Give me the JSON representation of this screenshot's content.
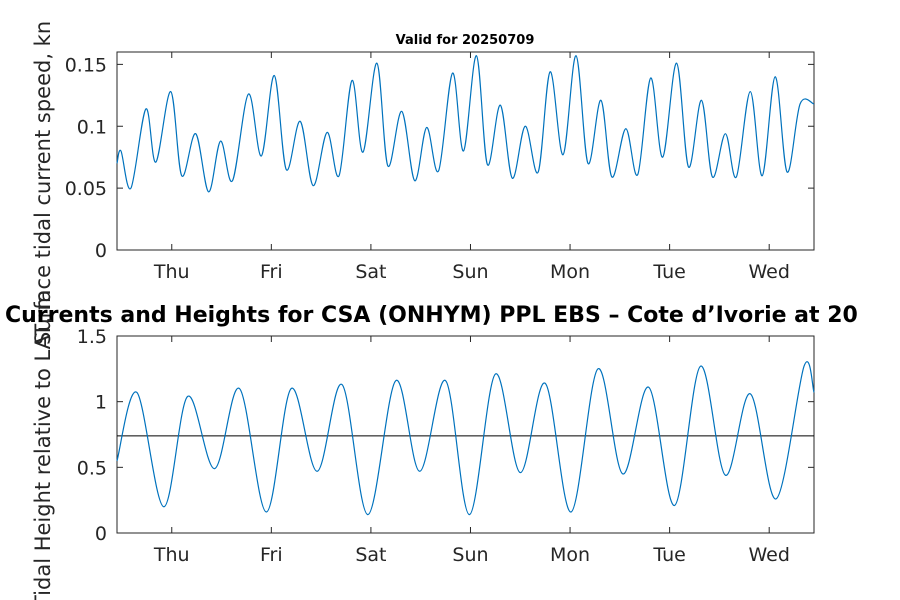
{
  "chart_data": [
    {
      "type": "line",
      "title": "Valid for 20250709",
      "ylabel": "Surface tidal current speed, kn",
      "xlabel": "",
      "ylim": [
        0,
        0.16
      ],
      "xlim": [
        0,
        7
      ],
      "x_tick_labels": [
        "Thu",
        "Fri",
        "Sat",
        "Sun",
        "Mon",
        "Tue",
        "Wed"
      ],
      "x_tick_positions": [
        0.55,
        1.55,
        2.55,
        3.55,
        4.55,
        5.55,
        6.55
      ],
      "y_ticks": [
        0,
        0.05,
        0.1,
        0.15
      ],
      "y_tick_labels": [
        "0",
        "0.05",
        "0.1",
        "0.15"
      ],
      "grid": false,
      "series": [
        {
          "x": [
            0.0,
            0.04,
            0.14,
            0.29,
            0.39,
            0.54,
            0.65,
            0.79,
            0.92,
            1.04,
            1.16,
            1.32,
            1.45,
            1.58,
            1.7,
            1.84,
            1.97,
            2.11,
            2.23,
            2.36,
            2.47,
            2.61,
            2.72,
            2.86,
            2.99,
            3.11,
            3.23,
            3.37,
            3.48,
            3.61,
            3.72,
            3.85,
            3.97,
            4.1,
            4.23,
            4.35,
            4.48,
            4.61,
            4.73,
            4.86,
            4.97,
            5.11,
            5.23,
            5.36,
            5.48,
            5.62,
            5.74,
            5.87,
            5.98,
            6.11,
            6.22,
            6.36,
            6.48,
            6.61,
            6.73,
            6.86,
            7.0
          ],
          "y": [
            0.07,
            0.08,
            0.05,
            0.114,
            0.071,
            0.128,
            0.06,
            0.094,
            0.047,
            0.088,
            0.056,
            0.126,
            0.076,
            0.141,
            0.065,
            0.104,
            0.052,
            0.095,
            0.06,
            0.137,
            0.079,
            0.151,
            0.068,
            0.112,
            0.056,
            0.099,
            0.064,
            0.143,
            0.08,
            0.157,
            0.069,
            0.117,
            0.058,
            0.1,
            0.063,
            0.144,
            0.077,
            0.157,
            0.07,
            0.121,
            0.059,
            0.098,
            0.061,
            0.139,
            0.075,
            0.151,
            0.067,
            0.121,
            0.059,
            0.094,
            0.059,
            0.128,
            0.06,
            0.14,
            0.063,
            0.118,
            0.118
          ]
        }
      ]
    },
    {
      "type": "line",
      "title": "Currents and Heights for CSA (ONHYM) PPL EBS  – Cote d’Ivorie at 20",
      "ylabel": "Tidal Height relative to LAT, m",
      "xlabel": "",
      "ylim": [
        0,
        1.5
      ],
      "xlim": [
        0,
        7
      ],
      "x_tick_labels": [
        "Thu",
        "Fri",
        "Sat",
        "Sun",
        "Mon",
        "Tue",
        "Wed"
      ],
      "x_tick_positions": [
        0.55,
        1.55,
        2.55,
        3.55,
        4.55,
        5.55,
        6.55
      ],
      "y_ticks": [
        0,
        0.5,
        1,
        1.5
      ],
      "y_tick_labels": [
        "0",
        "0.5",
        "1",
        "1.5"
      ],
      "grid": false,
      "reference_line": 0.74,
      "series": [
        {
          "x": [
            0.0,
            0.2,
            0.47,
            0.71,
            0.98,
            1.23,
            1.5,
            1.75,
            2.01,
            2.26,
            2.52,
            2.8,
            3.04,
            3.3,
            3.54,
            3.8,
            4.05,
            4.3,
            4.56,
            4.83,
            5.08,
            5.34,
            5.6,
            5.86,
            6.11,
            6.36,
            6.62,
            6.9,
            7.0
          ],
          "y": [
            0.55,
            1.07,
            0.2,
            1.04,
            0.49,
            1.1,
            0.16,
            1.1,
            0.47,
            1.13,
            0.14,
            1.16,
            0.47,
            1.16,
            0.14,
            1.21,
            0.46,
            1.14,
            0.16,
            1.25,
            0.45,
            1.11,
            0.21,
            1.27,
            0.44,
            1.06,
            0.26,
            1.27,
            1.07
          ]
        }
      ]
    }
  ]
}
